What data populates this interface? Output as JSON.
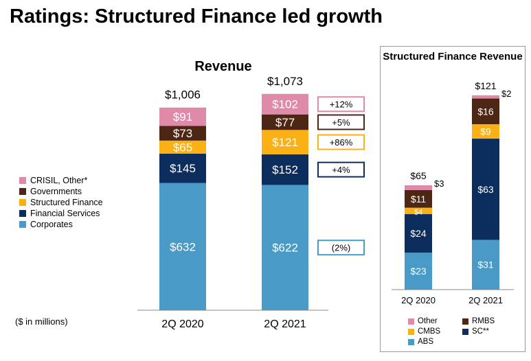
{
  "title": "Ratings: Structured Finance led growth",
  "units_note": "($ in millions)",
  "legend": [
    {
      "label": "CRISIL, Other*",
      "color": "#e08aa9"
    },
    {
      "label": "Governments",
      "color": "#4e2614"
    },
    {
      "label": "Structured Finance",
      "color": "#fbb114"
    },
    {
      "label": "Financial Services",
      "color": "#0d2d5e"
    },
    {
      "label": "Corporates",
      "color": "#4a9ac8"
    }
  ],
  "side_legend": [
    {
      "label": "Other",
      "color": "#e08aa9"
    },
    {
      "label": "RMBS",
      "color": "#4e2614"
    },
    {
      "label": "CMBS",
      "color": "#fbb114"
    },
    {
      "label": "SC**",
      "color": "#0d2d5e"
    },
    {
      "label": "ABS",
      "color": "#4a9ac8"
    }
  ],
  "chart_data": [
    {
      "type": "bar",
      "stacked": true,
      "title": "Revenue",
      "categories": [
        "2Q 2020",
        "2Q 2021"
      ],
      "totals": [
        1006,
        1073
      ],
      "total_labels": [
        "$1,006",
        "$1,073"
      ],
      "series": [
        {
          "name": "Corporates",
          "values": [
            632,
            622
          ],
          "labels": [
            "$632",
            "$622"
          ],
          "color": "#4a9ac8",
          "change": "(2%)"
        },
        {
          "name": "Financial Services",
          "values": [
            145,
            152
          ],
          "labels": [
            "$145",
            "$152"
          ],
          "color": "#0d2d5e",
          "change": "+4%"
        },
        {
          "name": "Structured Finance",
          "values": [
            65,
            121
          ],
          "labels": [
            "$65",
            "$121"
          ],
          "color": "#fbb114",
          "change": "+86%"
        },
        {
          "name": "Governments",
          "values": [
            73,
            77
          ],
          "labels": [
            "$73",
            "$77"
          ],
          "color": "#4e2614",
          "change": "+5%"
        },
        {
          "name": "CRISIL, Other*",
          "values": [
            91,
            102
          ],
          "labels": [
            "$91",
            "$102"
          ],
          "color": "#e08aa9",
          "change": "+12%"
        }
      ]
    },
    {
      "type": "bar",
      "stacked": true,
      "title": "Structured Finance Revenue",
      "categories": [
        "2Q 2020",
        "2Q 2021"
      ],
      "totals": [
        65,
        121
      ],
      "total_labels": [
        "$65",
        "$121"
      ],
      "series": [
        {
          "name": "ABS",
          "values": [
            23,
            31
          ],
          "labels": [
            "$23",
            "$31"
          ],
          "color": "#4a9ac8"
        },
        {
          "name": "SC**",
          "values": [
            24,
            63
          ],
          "labels": [
            "$24",
            "$63"
          ],
          "color": "#0d2d5e"
        },
        {
          "name": "CMBS",
          "values": [
            4,
            9
          ],
          "labels": [
            "$4",
            "$9"
          ],
          "color": "#fbb114"
        },
        {
          "name": "RMBS",
          "values": [
            11,
            16
          ],
          "labels": [
            "$11",
            "$16"
          ],
          "color": "#4e2614"
        },
        {
          "name": "Other",
          "values": [
            3,
            2
          ],
          "labels": [
            "$3",
            "$2"
          ],
          "color": "#e08aa9"
        }
      ]
    }
  ]
}
